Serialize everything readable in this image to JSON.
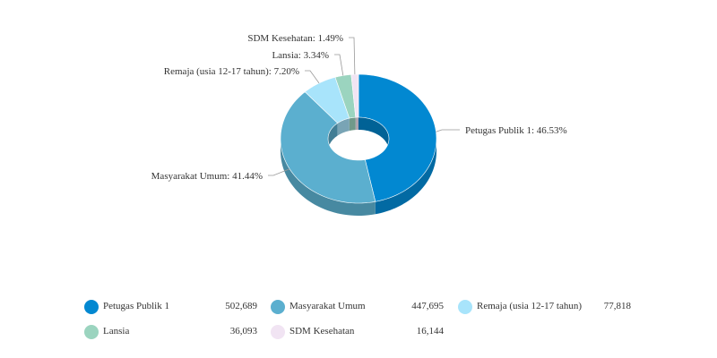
{
  "chart_data": {
    "type": "pie",
    "variant": "3d-donut",
    "slices": [
      {
        "name": "Petugas Publik 1",
        "value": 502689,
        "percent_label": "46.53%",
        "color": "#0288d1"
      },
      {
        "name": "Masyarakat Umum",
        "value": 447695,
        "percent_label": "41.44%",
        "color": "#5bafcf"
      },
      {
        "name": "Remaja (usia 12-17 tahun)",
        "value": 77818,
        "percent_label": "7.20%",
        "color": "#a8e4fb"
      },
      {
        "name": "Lansia",
        "value": 36093,
        "percent_label": "3.34%",
        "color": "#9bd4bf"
      },
      {
        "name": "SDM Kesehatan",
        "value": 16144,
        "percent_label": "1.49%",
        "color": "#f1e4f3"
      }
    ],
    "legend_position": "bottom"
  },
  "legend": {
    "items": [
      {
        "name": "Petugas Publik 1",
        "value": "502,689",
        "color": "#0288d1"
      },
      {
        "name": "Masyarakat Umum",
        "value": "447,695",
        "color": "#5bafcf"
      },
      {
        "name": "Remaja (usia 12-17 tahun)",
        "value": "77,818",
        "color": "#a8e4fb"
      },
      {
        "name": "Lansia",
        "value": "36,093",
        "color": "#9bd4bf"
      },
      {
        "name": "SDM Kesehatan",
        "value": "16,144",
        "color": "#f1e4f3"
      }
    ]
  }
}
